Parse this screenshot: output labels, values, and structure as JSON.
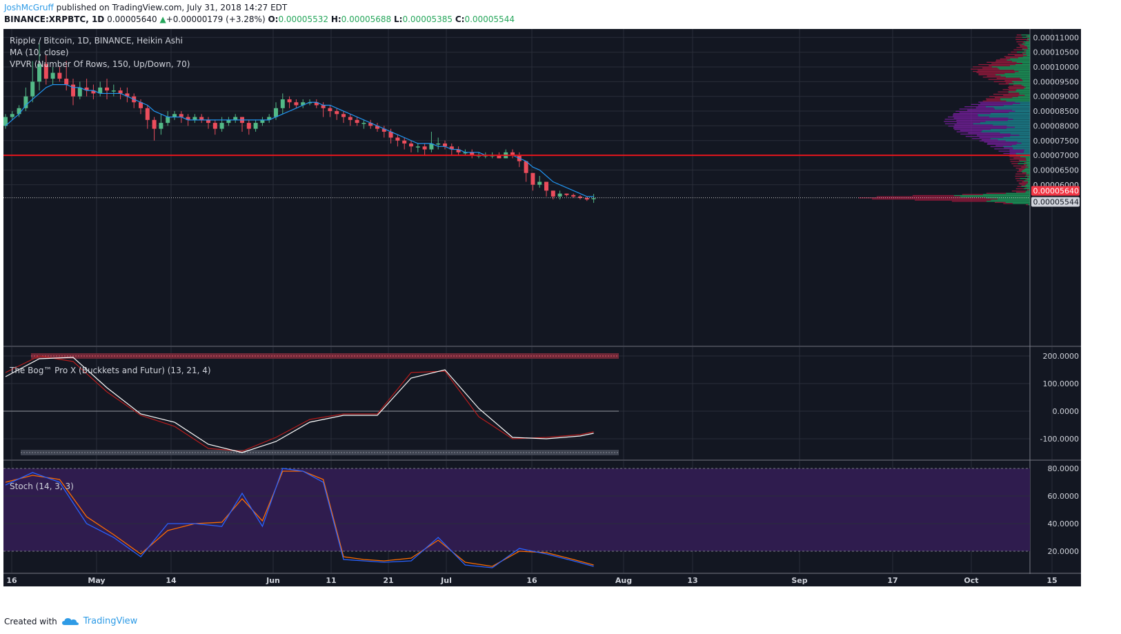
{
  "header": {
    "author": "JoshMcGruff",
    "published": "published on TradingView.com, July 31, 2018 14:27 EDT",
    "symbol": "BINANCE:XRPBTC, 1D",
    "price": "0.00005640",
    "change": "+0.00000179 (+3.28%)",
    "open_label": "O:",
    "open": "0.00005532",
    "high_label": "H:",
    "high": "0.00005688",
    "low_label": "L:",
    "low": "0.00005385",
    "close_label": "C:",
    "close": "0.00005544"
  },
  "footer": {
    "created_with": "Created with",
    "brand": "TradingView"
  },
  "colors": {
    "background": "#131722",
    "grid": "#2a2e39",
    "bull": "#53b987",
    "bear": "#eb4d5c",
    "ma": "#2196f3",
    "support": "#e8151c",
    "stoch_k": "#2962ff",
    "stoch_d": "#ff6d00",
    "stoch_band": "#2f1c4e",
    "osc_main": "#ffffff",
    "osc_signal": "#b71c1c"
  },
  "icons": {
    "up_arrow": "triangle-up-icon",
    "logo": "tradingview-cloud-icon"
  },
  "chart_data": [
    {
      "type": "candlestick",
      "title": "Ripple / Bitcoin, 1D, BINANCE, Heikin Ashi",
      "indicators": [
        "MA (10, close)",
        "VPVR (Number Of Rows, 150, Up/Down, 70)"
      ],
      "x_ticks": [
        "16",
        "May",
        "14",
        "Jun",
        "11",
        "21",
        "Jul",
        "16",
        "Aug",
        "13",
        "Sep",
        "17",
        "Oct",
        "15"
      ],
      "y_ticks": [
        "0.00011000",
        "0.00010500",
        "0.00010000",
        "0.00009500",
        "0.00009000",
        "0.00008500",
        "0.00008000",
        "0.00007500",
        "0.00007000",
        "0.00006500",
        "0.00006000"
      ],
      "ylim": [
        5.25e-05,
        0.0001135
      ],
      "last_price_label": "0.00005640",
      "close_label": "0.00005544",
      "support_level": 7e-05,
      "candles": [
        [
          8e-05,
          8.3e-05,
          8.4e-05,
          7.9e-05
        ],
        [
          8.3e-05,
          8.4e-05,
          8.5e-05,
          8.2e-05
        ],
        [
          8.4e-05,
          8.6e-05,
          8.7e-05,
          8.3e-05
        ],
        [
          8.6e-05,
          9e-05,
          9.3e-05,
          8.5e-05
        ],
        [
          9e-05,
          9.5e-05,
          0.000102,
          8.8e-05
        ],
        [
          9.5e-05,
          0.000101,
          0.000108,
          9.2e-05
        ],
        [
          0.000101,
          9.6e-05,
          0.000104,
          9.4e-05
        ],
        [
          9.6e-05,
          9.8e-05,
          0.0001,
          9.4e-05
        ],
        [
          9.8e-05,
          9.6e-05,
          0.0001,
          9.5e-05
        ],
        [
          9.6e-05,
          9.4e-05,
          0.000102,
          9.2e-05
        ],
        [
          9.4e-05,
          9e-05,
          9.6e-05,
          8.7e-05
        ],
        [
          9e-05,
          9.3e-05,
          9.5e-05,
          8.9e-05
        ],
        [
          9.3e-05,
          9.2e-05,
          9.6e-05,
          9e-05
        ],
        [
          9.2e-05,
          9.1e-05,
          9.4e-05,
          8.9e-05
        ],
        [
          9.1e-05,
          9.3e-05,
          9.5e-05,
          9e-05
        ],
        [
          9.3e-05,
          9.2e-05,
          9.6e-05,
          8.9e-05
        ],
        [
          9.2e-05,
          9.2e-05,
          9.4e-05,
          9e-05
        ],
        [
          9.2e-05,
          9.1e-05,
          9.3e-05,
          8.9e-05
        ],
        [
          9.1e-05,
          9e-05,
          9.3e-05,
          8.8e-05
        ],
        [
          9e-05,
          8.8e-05,
          9.1e-05,
          8.6e-05
        ],
        [
          8.8e-05,
          8.6e-05,
          8.9e-05,
          8.4e-05
        ],
        [
          8.6e-05,
          8.2e-05,
          8.7e-05,
          7.9e-05
        ],
        [
          8.2e-05,
          7.9e-05,
          8.3e-05,
          7.5e-05
        ],
        [
          7.9e-05,
          8.1e-05,
          8.4e-05,
          7.7e-05
        ],
        [
          8.1e-05,
          8.3e-05,
          8.5e-05,
          8e-05
        ],
        [
          8.3e-05,
          8.4e-05,
          8.5e-05,
          8.2e-05
        ],
        [
          8.4e-05,
          8.3e-05,
          8.5e-05,
          8.1e-05
        ],
        [
          8.3e-05,
          8.2e-05,
          8.4e-05,
          8e-05
        ],
        [
          8.2e-05,
          8.3e-05,
          8.4e-05,
          8.1e-05
        ],
        [
          8.3e-05,
          8.2e-05,
          8.4e-05,
          8.1e-05
        ],
        [
          8.2e-05,
          8.1e-05,
          8.3e-05,
          7.9e-05
        ],
        [
          8.1e-05,
          7.9e-05,
          8.2e-05,
          7.7e-05
        ],
        [
          7.9e-05,
          8.1e-05,
          8.3e-05,
          7.8e-05
        ],
        [
          8.1e-05,
          8.2e-05,
          8.3e-05,
          8e-05
        ],
        [
          8.2e-05,
          8.3e-05,
          8.4e-05,
          8.1e-05
        ],
        [
          8.3e-05,
          8.1e-05,
          8.3e-05,
          7.8e-05
        ],
        [
          8.1e-05,
          7.9e-05,
          8.2e-05,
          7.7e-05
        ],
        [
          7.9e-05,
          8.1e-05,
          8.2e-05,
          7.8e-05
        ],
        [
          8.1e-05,
          8.2e-05,
          8.3e-05,
          8e-05
        ],
        [
          8.2e-05,
          8.3e-05,
          8.4e-05,
          8.1e-05
        ],
        [
          8.3e-05,
          8.6e-05,
          8.8e-05,
          8.2e-05
        ],
        [
          8.6e-05,
          8.9e-05,
          9.1e-05,
          8.4e-05
        ],
        [
          8.9e-05,
          8.8e-05,
          9e-05,
          8.6e-05
        ],
        [
          8.8e-05,
          8.7e-05,
          8.9e-05,
          8.6e-05
        ],
        [
          8.7e-05,
          8.8e-05,
          8.9e-05,
          8.6e-05
        ],
        [
          8.8e-05,
          8.8e-05,
          8.9e-05,
          8.7e-05
        ],
        [
          8.8e-05,
          8.7e-05,
          8.9e-05,
          8.6e-05
        ],
        [
          8.7e-05,
          8.6e-05,
          8.8e-05,
          8.3e-05
        ],
        [
          8.6e-05,
          8.5e-05,
          8.7e-05,
          8.3e-05
        ],
        [
          8.5e-05,
          8.4e-05,
          8.6e-05,
          8.2e-05
        ],
        [
          8.4e-05,
          8.3e-05,
          8.5e-05,
          8.1e-05
        ],
        [
          8.3e-05,
          8.2e-05,
          8.4e-05,
          8e-05
        ],
        [
          8.2e-05,
          8.1e-05,
          8.3e-05,
          8e-05
        ],
        [
          8.1e-05,
          8.1e-05,
          8.2e-05,
          7.9e-05
        ],
        [
          8.1e-05,
          8e-05,
          8.2e-05,
          7.9e-05
        ],
        [
          8e-05,
          7.9e-05,
          8.1e-05,
          7.8e-05
        ],
        [
          7.9e-05,
          7.8e-05,
          8e-05,
          7.6e-05
        ],
        [
          7.8e-05,
          7.6e-05,
          7.9e-05,
          7.4e-05
        ],
        [
          7.6e-05,
          7.5e-05,
          7.7e-05,
          7.3e-05
        ],
        [
          7.5e-05,
          7.4e-05,
          7.6e-05,
          7.2e-05
        ],
        [
          7.4e-05,
          7.3e-05,
          7.5e-05,
          7.1e-05
        ],
        [
          7.3e-05,
          7.3e-05,
          7.4e-05,
          7.1e-05
        ],
        [
          7.3e-05,
          7.2e-05,
          7.4e-05,
          7e-05
        ],
        [
          7.2e-05,
          7.4e-05,
          7.8e-05,
          7.1e-05
        ],
        [
          7.4e-05,
          7.4e-05,
          7.6e-05,
          7.2e-05
        ],
        [
          7.4e-05,
          7.3e-05,
          7.5e-05,
          7.2e-05
        ],
        [
          7.3e-05,
          7.2e-05,
          7.4e-05,
          7e-05
        ],
        [
          7.2e-05,
          7.1e-05,
          7.3e-05,
          7e-05
        ],
        [
          7.1e-05,
          7.1e-05,
          7.2e-05,
          7e-05
        ],
        [
          7.1e-05,
          7e-05,
          7.2e-05,
          6.9e-05
        ],
        [
          7e-05,
          7e-05,
          7.1e-05,
          6.9e-05
        ],
        [
          7e-05,
          7e-05,
          7.1e-05,
          6.9e-05
        ],
        [
          7e-05,
          7e-05,
          7.1e-05,
          6.9e-05
        ],
        [
          7e-05,
          6.9e-05,
          7.1e-05,
          6.9e-05
        ],
        [
          6.9e-05,
          7.1e-05,
          7.2e-05,
          6.9e-05
        ],
        [
          7.1e-05,
          7e-05,
          7.2e-05,
          6.9e-05
        ],
        [
          7e-05,
          6.8e-05,
          7.1e-05,
          6.6e-05
        ],
        [
          6.8e-05,
          6.4e-05,
          6.8e-05,
          6.1e-05
        ],
        [
          6.4e-05,
          6e-05,
          6.4e-05,
          5.8e-05
        ],
        [
          6e-05,
          6.1e-05,
          6.3e-05,
          5.9e-05
        ],
        [
          6.1e-05,
          5.8e-05,
          6.1e-05,
          5.6e-05
        ],
        [
          5.8e-05,
          5.6e-05,
          5.8e-05,
          5.5e-05
        ],
        [
          5.6e-05,
          5.7e-05,
          5.8e-05,
          5.5e-05
        ],
        [
          5.7e-05,
          5.65e-05,
          5.7e-05,
          5.6e-05
        ],
        [
          5.65e-05,
          5.6e-05,
          5.7e-05,
          5.55e-05
        ],
        [
          5.6e-05,
          5.55e-05,
          5.65e-05,
          5.5e-05
        ],
        [
          5.55e-05,
          5.5e-05,
          5.6e-05,
          5.45e-05
        ],
        [
          5.532e-05,
          5.544e-05,
          5.688e-05,
          5.385e-05
        ]
      ],
      "ma10": [
        8e-05,
        8.2e-05,
        8.4e-05,
        8.7e-05,
        8.9e-05,
        9.1e-05,
        9.3e-05,
        9.4e-05,
        9.4e-05,
        9.4e-05,
        9.3e-05,
        9.3e-05,
        9.2e-05,
        9.2e-05,
        9.1e-05,
        9.1e-05,
        9.1e-05,
        9.1e-05,
        9e-05,
        8.9e-05,
        8.8e-05,
        8.7e-05,
        8.5e-05,
        8.4e-05,
        8.3e-05,
        8.3e-05,
        8.3e-05,
        8.2e-05,
        8.2e-05,
        8.2e-05,
        8.2e-05,
        8.2e-05,
        8.2e-05,
        8.2e-05,
        8.2e-05,
        8.2e-05,
        8.2e-05,
        8.2e-05,
        8.2e-05,
        8.2e-05,
        8.3e-05,
        8.4e-05,
        8.5e-05,
        8.6e-05,
        8.7e-05,
        8.8e-05,
        8.8e-05,
        8.7e-05,
        8.7e-05,
        8.6e-05,
        8.5e-05,
        8.4e-05,
        8.3e-05,
        8.2e-05,
        8.1e-05,
        8e-05,
        7.9e-05,
        7.8e-05,
        7.7e-05,
        7.6e-05,
        7.5e-05,
        7.4e-05,
        7.4e-05,
        7.4e-05,
        7.3e-05,
        7.3e-05,
        7.2e-05,
        7.2e-05,
        7.1e-05,
        7.1e-05,
        7.1e-05,
        7e-05,
        7e-05,
        7e-05,
        7e-05,
        7e-05,
        6.9e-05,
        6.8e-05,
        6.6e-05,
        6.5e-05,
        6.3e-05,
        6.1e-05,
        6e-05,
        5.9e-05,
        5.8e-05,
        5.7e-05,
        5.6e-05,
        5.6e-05
      ]
    },
    {
      "type": "line",
      "title": "The Bog™ Pro X (Buckkets and Futur) (13, 21, 4)",
      "y_ticks": [
        "200.0000",
        "100.0000",
        "0.0000",
        "-100.0000"
      ],
      "ylim": [
        -210,
        230
      ],
      "levels": [
        200,
        -150
      ],
      "x": [
        0,
        5,
        10,
        15,
        20,
        25,
        30,
        35,
        40,
        45,
        50,
        55,
        60,
        65,
        70,
        75,
        80,
        85,
        87
      ],
      "series": [
        {
          "values": [
            125,
            190,
            195,
            85,
            -10,
            -40,
            -120,
            -150,
            -110,
            -40,
            -15,
            -15,
            120,
            150,
            10,
            -95,
            -100,
            -90,
            -80
          ]
        },
        {
          "values": [
            140,
            200,
            180,
            70,
            -15,
            -55,
            -135,
            -145,
            -95,
            -30,
            -10,
            -10,
            140,
            145,
            -20,
            -100,
            -95,
            -85,
            -75
          ]
        }
      ],
      "main_tail": [
        -55,
        -55,
        -130,
        -150,
        -110
      ],
      "signal_tail": [
        -55,
        -50,
        -140,
        -140,
        -85
      ]
    },
    {
      "type": "line",
      "title": "Stoch (14, 3, 3)",
      "y_ticks": [
        "80.0000",
        "60.0000",
        "40.0000",
        "20.0000"
      ],
      "ylim": [
        8,
        85
      ],
      "bands": [
        20,
        80
      ],
      "x": [
        0,
        4,
        8,
        12,
        16,
        20,
        24,
        28,
        32,
        35,
        38,
        41,
        44,
        47,
        50,
        53,
        56,
        60,
        64,
        68,
        72,
        76,
        80,
        84,
        87
      ],
      "series": [
        {
          "values": [
            68,
            77,
            70,
            40,
            30,
            16,
            40,
            40,
            38,
            62,
            38,
            80,
            78,
            70,
            14,
            13,
            12,
            13,
            30,
            10,
            8,
            22,
            18,
            13,
            9
          ]
        },
        {
          "values": [
            70,
            75,
            72,
            45,
            32,
            18,
            35,
            40,
            41,
            58,
            42,
            78,
            78,
            72,
            16,
            14,
            13,
            15,
            28,
            12,
            9,
            20,
            19,
            14,
            10
          ]
        }
      ]
    }
  ]
}
